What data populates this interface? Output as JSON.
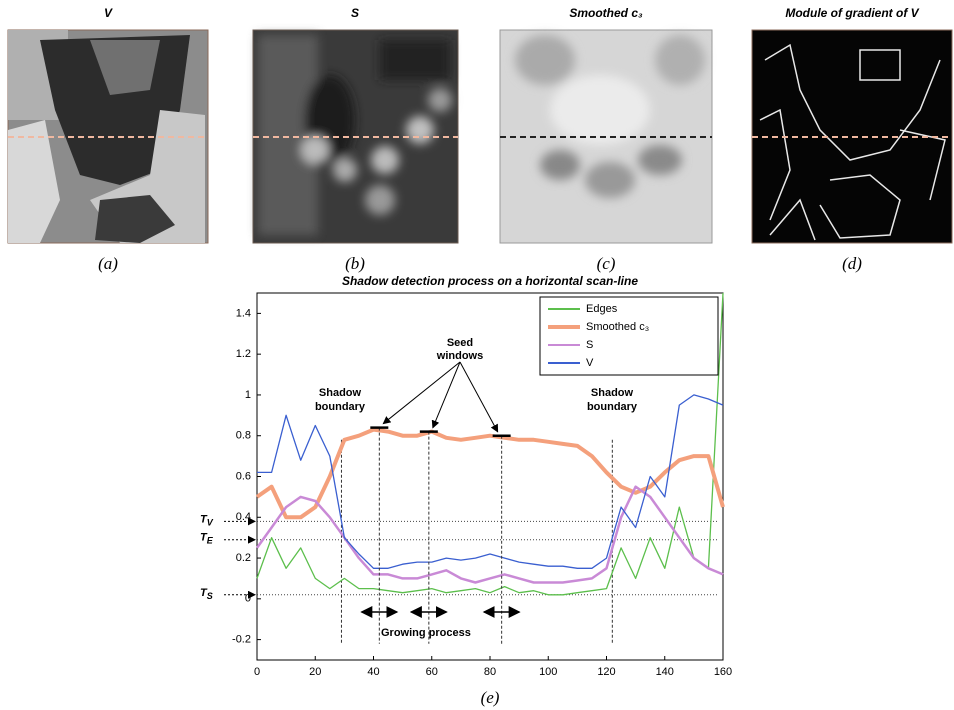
{
  "panels": [
    {
      "title": "V",
      "caption": "(a)"
    },
    {
      "title": "S",
      "caption": "(b)"
    },
    {
      "title": "Smoothed c₃",
      "caption": "(c)"
    },
    {
      "title": "Module of gradient of V",
      "caption": "(d)"
    }
  ],
  "chart_data": {
    "type": "line",
    "title": "Shadow detection process on a horizontal scan-line",
    "caption": "(e)",
    "x": [
      0,
      5,
      10,
      15,
      20,
      25,
      30,
      35,
      40,
      45,
      50,
      55,
      60,
      65,
      70,
      75,
      80,
      85,
      90,
      95,
      100,
      105,
      110,
      115,
      120,
      125,
      130,
      135,
      140,
      145,
      150,
      155,
      160
    ],
    "series": [
      {
        "name": "Edges",
        "color": "#5cbf4c",
        "values": [
          0.1,
          0.3,
          0.15,
          0.25,
          0.1,
          0.05,
          0.1,
          0.05,
          0.05,
          0.04,
          0.03,
          0.04,
          0.05,
          0.03,
          0.04,
          0.05,
          0.03,
          0.06,
          0.03,
          0.04,
          0.02,
          0.02,
          0.03,
          0.04,
          0.05,
          0.25,
          0.1,
          0.3,
          0.15,
          0.45,
          0.2,
          0.15,
          1.5
        ]
      },
      {
        "name": "Smoothed c₃",
        "color": "#f4a07c",
        "values": [
          0.5,
          0.55,
          0.4,
          0.4,
          0.45,
          0.6,
          0.78,
          0.8,
          0.83,
          0.82,
          0.8,
          0.8,
          0.82,
          0.79,
          0.78,
          0.79,
          0.8,
          0.79,
          0.78,
          0.78,
          0.77,
          0.76,
          0.75,
          0.7,
          0.62,
          0.55,
          0.52,
          0.55,
          0.62,
          0.68,
          0.7,
          0.7,
          0.45
        ]
      },
      {
        "name": "S",
        "color": "#c98ad6",
        "values": [
          0.25,
          0.35,
          0.45,
          0.5,
          0.48,
          0.4,
          0.3,
          0.2,
          0.12,
          0.12,
          0.1,
          0.1,
          0.12,
          0.14,
          0.1,
          0.08,
          0.1,
          0.12,
          0.1,
          0.08,
          0.08,
          0.08,
          0.09,
          0.1,
          0.15,
          0.4,
          0.55,
          0.5,
          0.4,
          0.3,
          0.2,
          0.15,
          0.12
        ]
      },
      {
        "name": "V",
        "color": "#3a5fd0",
        "values": [
          0.62,
          0.62,
          0.9,
          0.68,
          0.85,
          0.7,
          0.3,
          0.22,
          0.15,
          0.15,
          0.17,
          0.18,
          0.18,
          0.2,
          0.19,
          0.2,
          0.22,
          0.2,
          0.18,
          0.17,
          0.16,
          0.16,
          0.15,
          0.15,
          0.2,
          0.45,
          0.35,
          0.6,
          0.5,
          0.95,
          1.0,
          0.98,
          0.95
        ]
      }
    ],
    "xlim": [
      0,
      160
    ],
    "xticks": [
      0,
      20,
      40,
      60,
      80,
      100,
      120,
      140,
      160
    ],
    "ylim": [
      -0.3,
      1.5
    ],
    "yticks": [
      -0.2,
      0,
      0.2,
      0.4,
      0.6,
      0.8,
      1,
      1.2,
      1.4
    ],
    "legend": "upper right",
    "thresholds": [
      {
        "value": 0.38,
        "label": "T",
        "subscript": "V"
      },
      {
        "value": 0.29,
        "label": "T",
        "subscript": "E"
      },
      {
        "value": 0.02,
        "label": "T",
        "subscript": "S"
      }
    ],
    "boundaries": [
      29,
      122
    ],
    "seed_windows": [
      {
        "x": 42,
        "y": 0.84
      },
      {
        "x": 59,
        "y": 0.82
      },
      {
        "x": 84,
        "y": 0.8
      }
    ],
    "growing_windows": [
      [
        36,
        48
      ],
      [
        53,
        65
      ],
      [
        78,
        90
      ]
    ],
    "annotations": {
      "shadow_boundary_left": [
        "Shadow",
        "boundary"
      ],
      "seed": [
        "Seed",
        "windows"
      ],
      "shadow_boundary_right": [
        "Shadow",
        "boundary"
      ],
      "growing": "Growing process"
    }
  }
}
